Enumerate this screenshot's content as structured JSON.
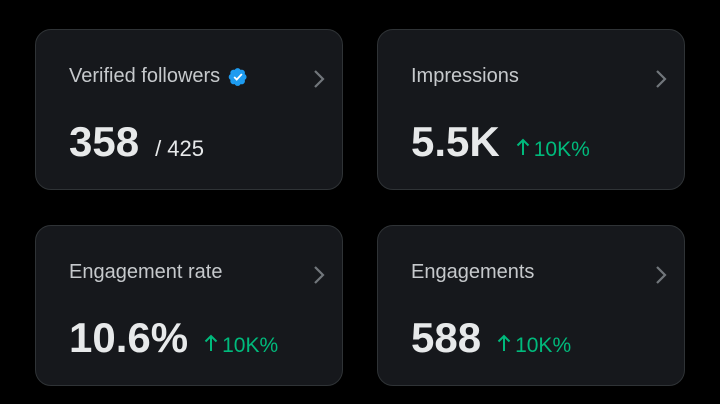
{
  "cards": [
    {
      "title": "Verified followers",
      "value": "358",
      "total": "/ 425"
    },
    {
      "title": "Impressions",
      "value": "5.5K",
      "change": "10K%"
    },
    {
      "title": "Engagement rate",
      "value": "10.6%",
      "change": "10K%"
    },
    {
      "title": "Engagements",
      "value": "588",
      "change": "10K%"
    }
  ]
}
